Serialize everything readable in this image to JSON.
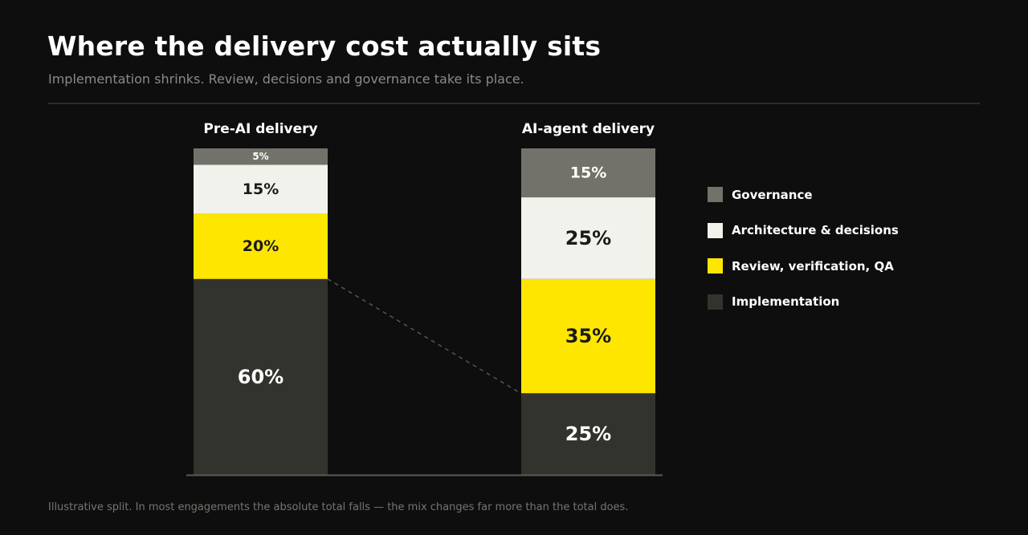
{
  "title": "Where the delivery cost actually sits",
  "subtitle": "Implementation shrinks. Review, decisions and governance take its place.",
  "footnote": "Illustrative split. In most engagements the absolute total falls — the mix changes far more than the total does.",
  "colors": {
    "background": "#0e0e0e",
    "governance": "#73726a",
    "architecture": "#f2f2ec",
    "review": "#ffe600",
    "implementation": "#33332d",
    "label_dark": "#1a1a1a",
    "label_light": "#ffffff"
  },
  "chart_data": {
    "type": "bar",
    "stacked": true,
    "unit": "%",
    "categories": [
      "Pre-AI delivery",
      "AI-agent delivery"
    ],
    "series": [
      {
        "name": "Implementation",
        "values": [
          60,
          25
        ],
        "color": "#33332d"
      },
      {
        "name": "Review, verification, QA",
        "values": [
          20,
          35
        ],
        "color": "#ffe600"
      },
      {
        "name": "Architecture & decisions",
        "values": [
          15,
          25
        ],
        "color": "#f2f2ec"
      },
      {
        "name": "Governance",
        "values": [
          5,
          15
        ],
        "color": "#73726a"
      }
    ],
    "legend_order": [
      "Governance",
      "Architecture & decisions",
      "Review, verification, QA",
      "Implementation"
    ],
    "legend_position": "right",
    "ylim": [
      0,
      100
    ],
    "grid": false,
    "annotations": [
      "dashed connector from top of Pre-AI Implementation to top of AI-agent Implementation"
    ]
  }
}
